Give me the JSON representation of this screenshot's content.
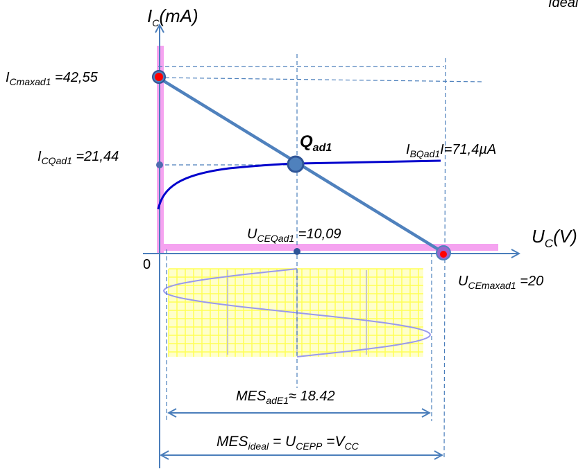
{
  "corner_text": "Ideal",
  "axes": {
    "y_main": "I",
    "y_sub": "C",
    "y_unit": "(mA)",
    "x_main": "U",
    "x_sub": "C",
    "x_unit": "(V)",
    "origin": "0"
  },
  "points": {
    "icmax": {
      "main": "I",
      "sub": "Cmaxad1",
      "value": " =42,55"
    },
    "icq": {
      "main": "I",
      "sub": "CQad1",
      "value": " =21,44"
    },
    "q": {
      "main": "Q",
      "sub": "ad1"
    },
    "ib": {
      "main": "I",
      "sub": "BQad1",
      "value": "I=71,4µA"
    },
    "uceq": {
      "main": "U",
      "sub": "CEQad1",
      "value": " =10,09"
    },
    "ucemax": {
      "main": "U",
      "sub": "CEmaxad1",
      "value": " =20"
    }
  },
  "mes_ade1": {
    "main": "MES",
    "sub": "adE1",
    "value": "≈ 18.42"
  },
  "mes_ideal": {
    "main": "MES",
    "sub": "ideal",
    "eq1": " = U",
    "sub2": "CEPP",
    "eq2": " =V",
    "sub3": "CC"
  },
  "colors": {
    "axis": "#4a7ebb",
    "load_line": "#4f81bd",
    "curve": "#0000cc",
    "highlight": "#f5a3f0",
    "grid": "#ffff66",
    "sine": "#9999ee",
    "point_fill": "#4f81bd",
    "point_red": "#ff0000"
  }
}
